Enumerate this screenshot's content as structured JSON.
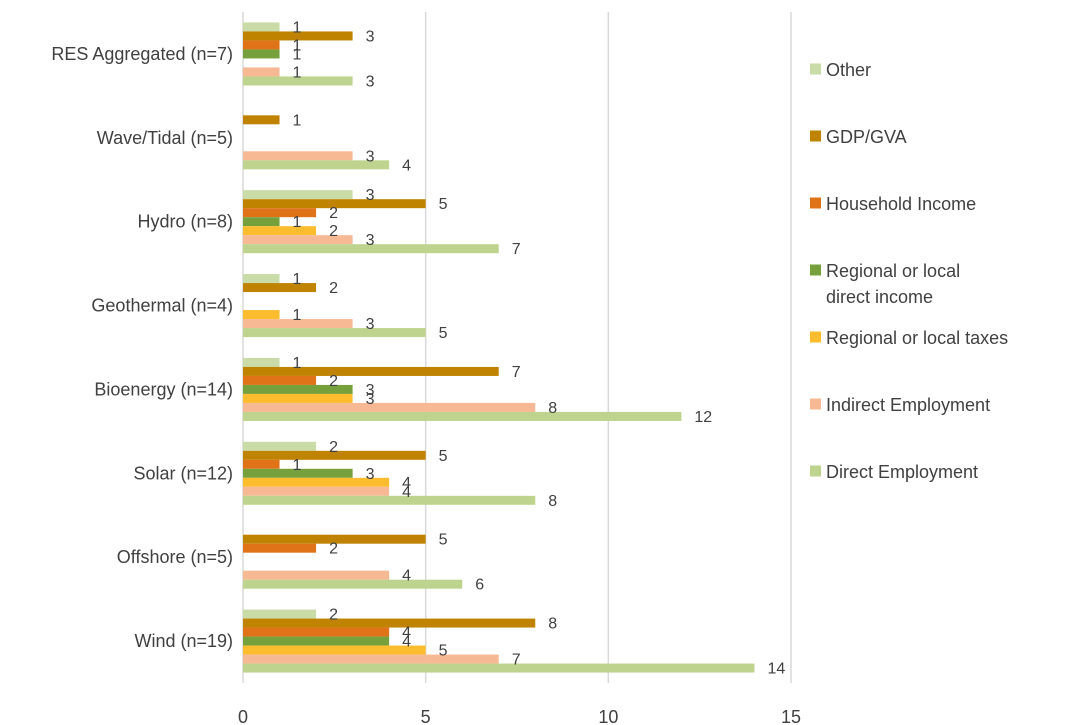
{
  "chart_data": {
    "type": "bar",
    "orientation": "horizontal",
    "categories": [
      "RES Aggregated (n=7)",
      "Wave/Tidal (n=5)",
      "Hydro (n=8)",
      "Geothermal (n=4)",
      "Bioenergy (n=14)",
      "Solar (n=12)",
      "Offshore (n=5)",
      "Wind (n=19)"
    ],
    "series": [
      {
        "name": "Other",
        "color": "#c9dba6",
        "values": [
          1,
          null,
          3,
          1,
          1,
          2,
          null,
          2
        ]
      },
      {
        "name": "GDP/GVA",
        "color": "#bf8300",
        "values": [
          3,
          1,
          5,
          2,
          7,
          5,
          5,
          8
        ]
      },
      {
        "name": "Household Income",
        "color": "#e07218",
        "values": [
          1,
          null,
          2,
          null,
          2,
          1,
          2,
          4
        ]
      },
      {
        "name": "Regional or local direct income",
        "color": "#76a03c",
        "values": [
          1,
          null,
          1,
          null,
          3,
          3,
          null,
          4
        ]
      },
      {
        "name": "Regional or local taxes",
        "color": "#fbbd2e",
        "values": [
          null,
          null,
          2,
          1,
          3,
          4,
          null,
          5
        ]
      },
      {
        "name": "Indirect Employment",
        "color": "#f7b894",
        "values": [
          1,
          3,
          3,
          3,
          8,
          4,
          4,
          7
        ]
      },
      {
        "name": "Direct Employment",
        "color": "#bed48e",
        "values": [
          3,
          4,
          7,
          5,
          12,
          8,
          6,
          14
        ]
      }
    ],
    "xlim": [
      0,
      15
    ],
    "xticks": [
      0,
      5,
      10,
      15
    ],
    "grid": true,
    "legend_position": "right",
    "title": "",
    "xlabel": "",
    "ylabel": ""
  }
}
